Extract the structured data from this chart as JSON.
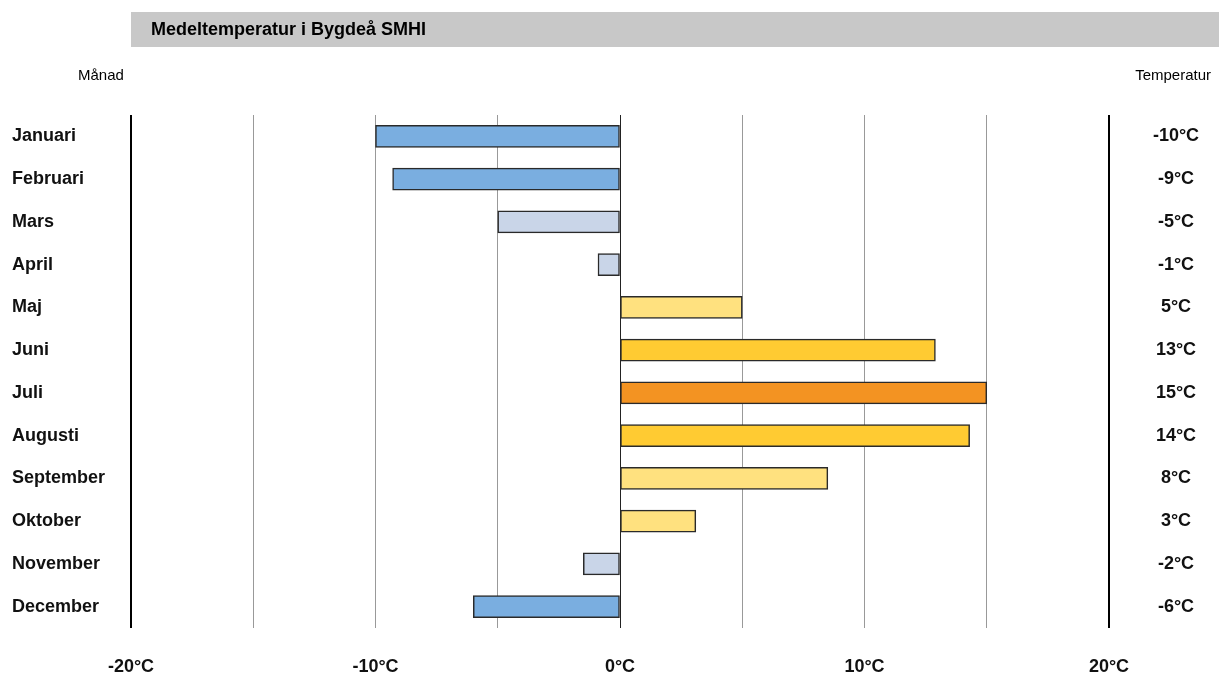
{
  "chart_data": {
    "type": "bar",
    "orientation": "horizontal",
    "title": "Medeltemperatur i Bygdeå SMHI",
    "ylabel": "Månad",
    "annotations": [
      "Temperatur"
    ],
    "categories": [
      "Januari",
      "Februari",
      "Mars",
      "April",
      "Maj",
      "Juni",
      "Juli",
      "Augusti",
      "September",
      "Oktober",
      "November",
      "December"
    ],
    "values": [
      -10.0,
      -9.3,
      -5.0,
      -0.9,
      5.0,
      12.9,
      15.0,
      14.3,
      8.5,
      3.1,
      -1.5,
      -6.0
    ],
    "value_labels": [
      "-10°C",
      "-9°C",
      "-5°C",
      "-1°C",
      "5°C",
      "13°C",
      "15°C",
      "14°C",
      "8°C",
      "3°C",
      "-2°C",
      "-6°C"
    ],
    "colors": [
      "#7aaee0",
      "#7aaee0",
      "#c9d5e8",
      "#c9d5e8",
      "#ffe17f",
      "#ffcb32",
      "#f39322",
      "#ffcb32",
      "#ffe17f",
      "#ffe17f",
      "#c9d5e8",
      "#7aaee0"
    ],
    "xlim": [
      -20,
      20
    ],
    "xticks": [
      {
        "value": -20,
        "label": "-20°C"
      },
      {
        "value": -15,
        "label": null
      },
      {
        "value": -10,
        "label": "-10°C"
      },
      {
        "value": -5,
        "label": null
      },
      {
        "value": 0,
        "label": "0°C"
      },
      {
        "value": 5,
        "label": null
      },
      {
        "value": 10,
        "label": "10°C"
      },
      {
        "value": 15,
        "label": null
      },
      {
        "value": 20,
        "label": "20°C"
      }
    ],
    "grid": true,
    "legend": false
  }
}
